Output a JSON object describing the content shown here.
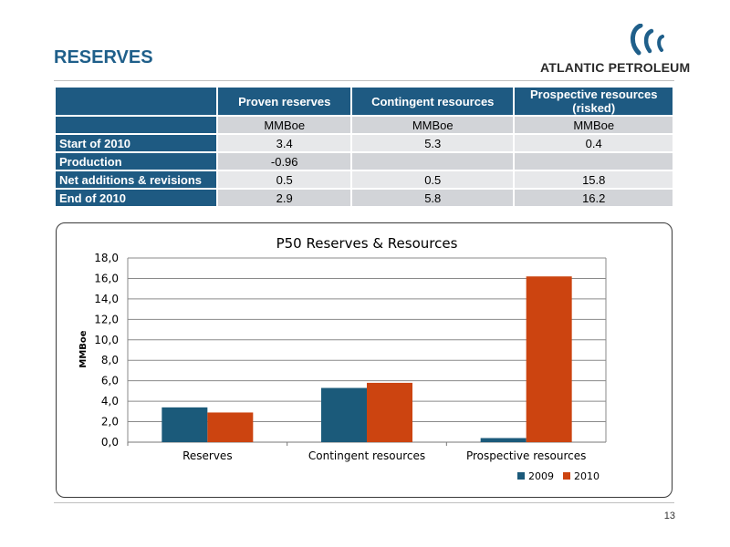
{
  "slide": {
    "title": "RESERVES",
    "page_number": "13"
  },
  "logo": {
    "name": "ATLANTIC PETROLEUM",
    "icon": "atlantic-petroleum-logo-icon",
    "colors": {
      "mark": "#1f5f8a",
      "text": "#2a2a2a"
    }
  },
  "colors": {
    "table_header": "#1e5a82",
    "table_cell_dark": "#d2d4d8",
    "table_cell_light": "#e7e8ea",
    "series_2009": "#1b5a7a",
    "series_2010": "#cc4410",
    "title": "#1f5f8a"
  },
  "table": {
    "columns": [
      "Proven reserves",
      "Contingent resources",
      "Prospective resources (risked)"
    ],
    "units": [
      "MMBoe",
      "MMBoe",
      "MMBoe"
    ],
    "rows": [
      {
        "label": "Start of 2010",
        "values": [
          "3.4",
          "5.3",
          "0.4"
        ]
      },
      {
        "label": "Production",
        "values": [
          "-0.96",
          "",
          ""
        ]
      },
      {
        "label": "Net additions & revisions",
        "values": [
          "0.5",
          "0.5",
          "15.8"
        ]
      },
      {
        "label": "End of 2010",
        "values": [
          "2.9",
          "5.8",
          "16.2"
        ]
      }
    ]
  },
  "chart_data": {
    "type": "bar",
    "title": "P50 Reserves & Resources",
    "xlabel": "",
    "ylabel": "MMBoe",
    "categories": [
      "Reserves",
      "Contingent resources",
      "Prospective resources"
    ],
    "series": [
      {
        "name": "2009",
        "values": [
          3.4,
          5.3,
          0.4
        ],
        "color": "#1b5a7a"
      },
      {
        "name": "2010",
        "values": [
          2.9,
          5.8,
          16.2
        ],
        "color": "#cc4410"
      }
    ],
    "ylim": [
      0,
      18
    ],
    "yticks": [
      0,
      2,
      4,
      6,
      8,
      10,
      12,
      14,
      16,
      18
    ],
    "ytick_labels": [
      "0,0",
      "2,0",
      "4,0",
      "6,0",
      "8,0",
      "10,0",
      "12,0",
      "14,0",
      "16,0",
      "18,0"
    ],
    "grid": true,
    "legend_position": "bottom-right"
  }
}
